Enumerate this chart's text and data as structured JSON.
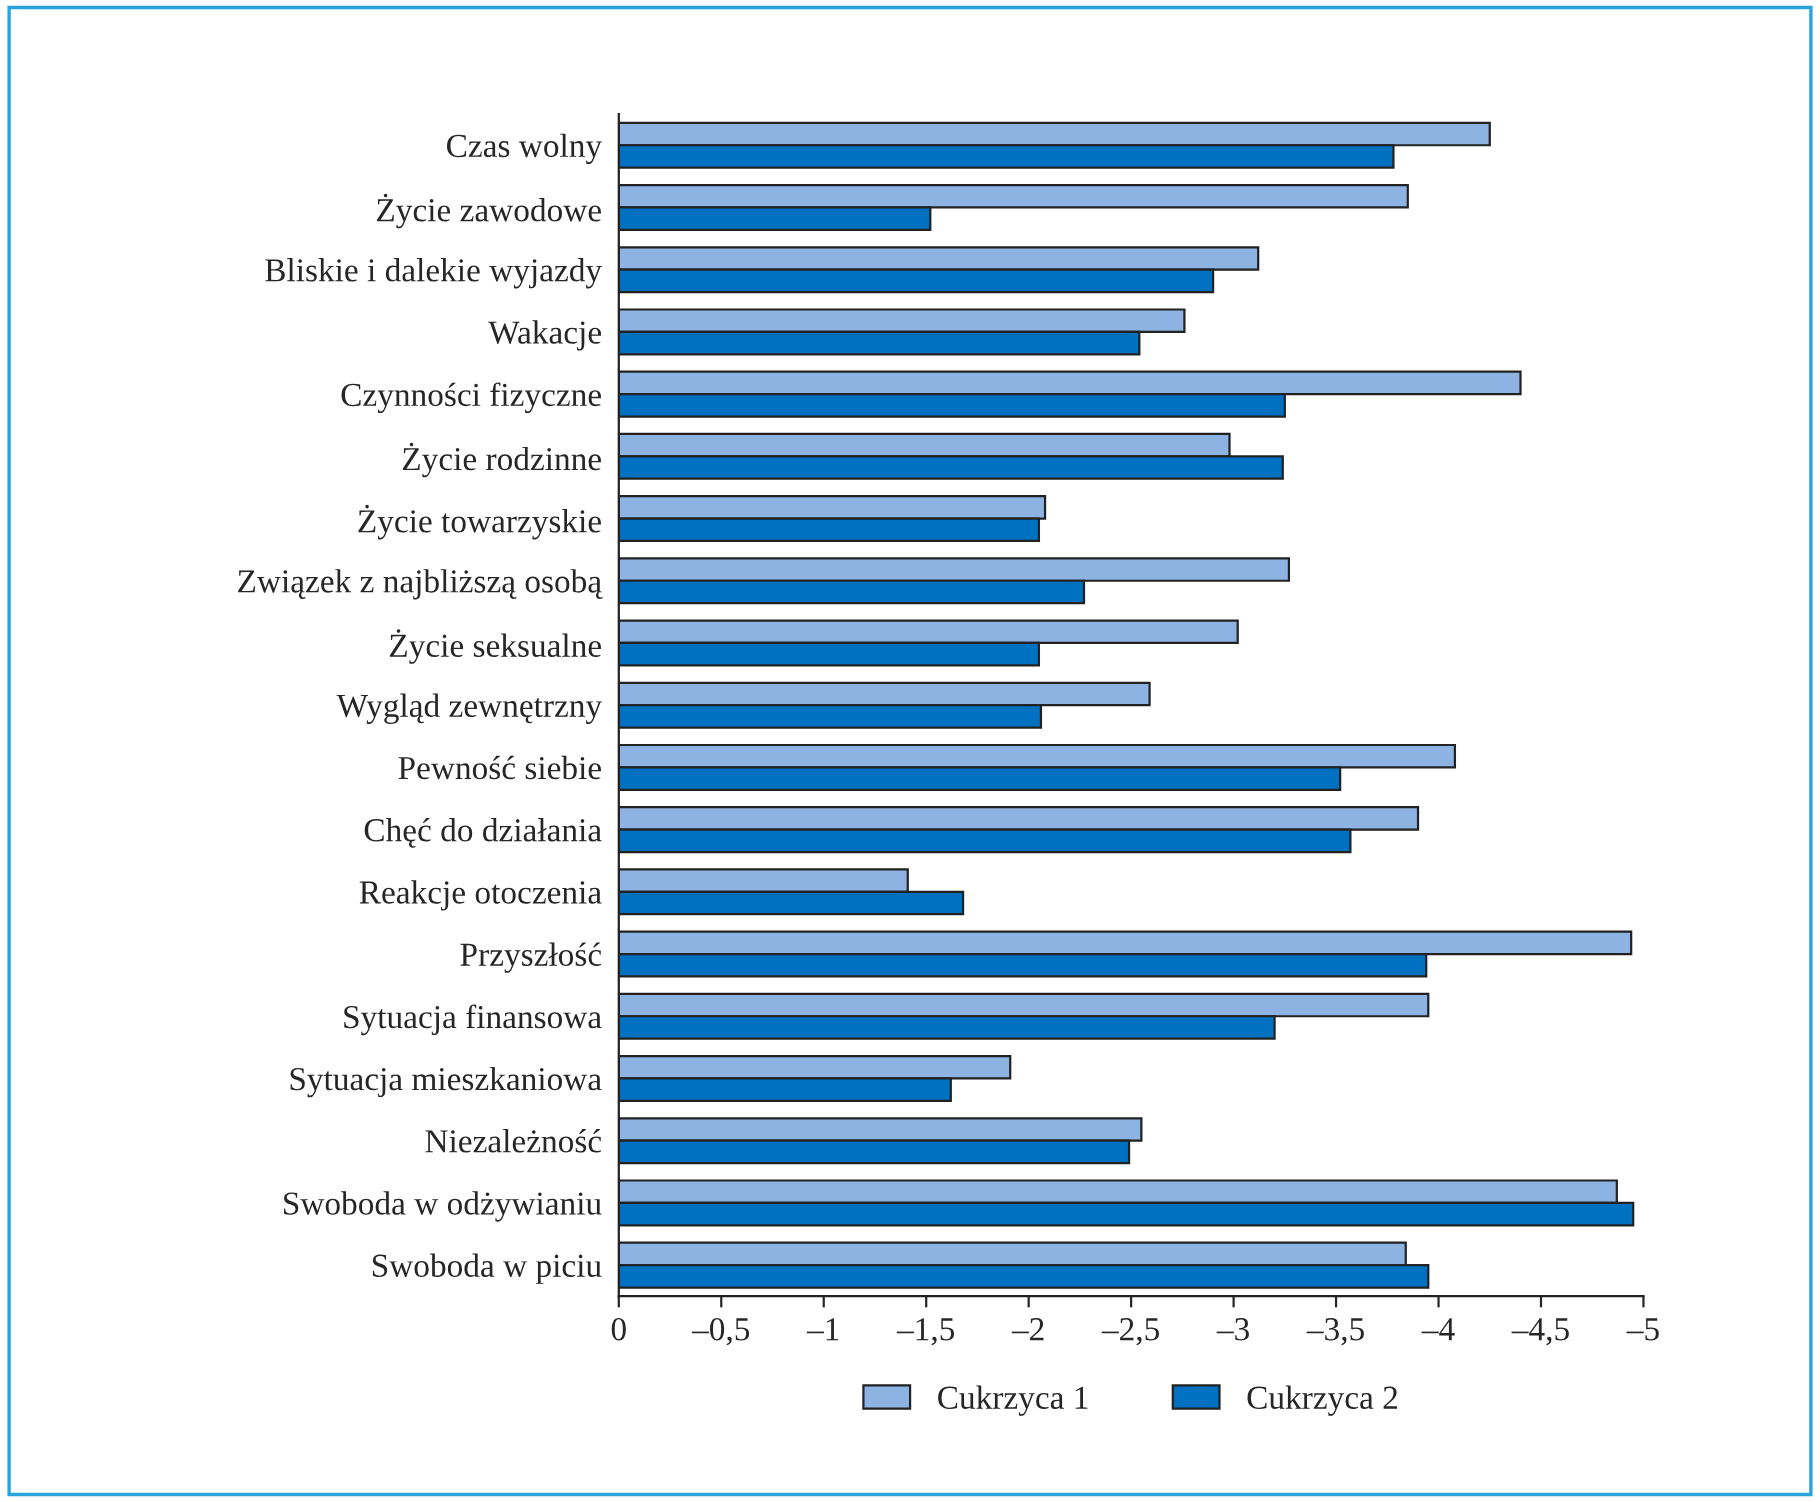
{
  "chart_data": {
    "type": "bar",
    "orientation": "horizontal",
    "categories": [
      "Czas wolny",
      "Życie zawodowe",
      "Bliskie i dalekie wyjazdy",
      "Wakacje",
      "Czynności fizyczne",
      "Życie rodzinne",
      "Życie towarzyskie",
      "Związek z najbliższą osobą",
      "Życie seksualne",
      "Wygląd zewnętrzny",
      "Pewność siebie",
      "Chęć do działania",
      "Reakcje otoczenia",
      "Przyszłość",
      "Sytuacja finansowa",
      "Sytuacja mieszkaniowa",
      "Niezależność",
      "Swoboda w odżywianiu",
      "Swoboda w piciu"
    ],
    "series": [
      {
        "name": "Cukrzyca 1",
        "color": "#8db3e2",
        "values": [
          -4.25,
          -3.85,
          -3.12,
          -2.76,
          -4.4,
          -2.98,
          -2.08,
          -3.27,
          -3.02,
          -2.59,
          -4.08,
          -3.9,
          -1.41,
          -4.94,
          -3.95,
          -1.91,
          -2.55,
          -4.87,
          -3.84
        ]
      },
      {
        "name": "Cukrzyca 2",
        "color": "#0070c0",
        "values": [
          -3.78,
          -1.52,
          -2.9,
          -2.54,
          -3.25,
          -3.24,
          -2.05,
          -2.27,
          -2.05,
          -2.06,
          -3.52,
          -3.57,
          -1.68,
          -3.94,
          -3.2,
          -1.62,
          -2.49,
          -4.95,
          -3.95
        ]
      }
    ],
    "xlim": [
      0,
      -5
    ],
    "xticks": [
      0,
      {
        "value": -0.5,
        "label": "–0,5"
      },
      {
        "value": -1,
        "label": "–1"
      },
      {
        "value": -1.5,
        "label": "–1,5"
      },
      {
        "value": -2,
        "label": "–2"
      },
      {
        "value": -2.5,
        "label": "–2,5"
      },
      {
        "value": -3,
        "label": "–3"
      },
      {
        "value": -3.5,
        "label": "–3,5"
      },
      {
        "value": -4,
        "label": "–4"
      },
      {
        "value": -4.5,
        "label": "–4,5"
      },
      {
        "value": -5,
        "label": "–5"
      }
    ],
    "legend": "bottom",
    "grid": false
  }
}
